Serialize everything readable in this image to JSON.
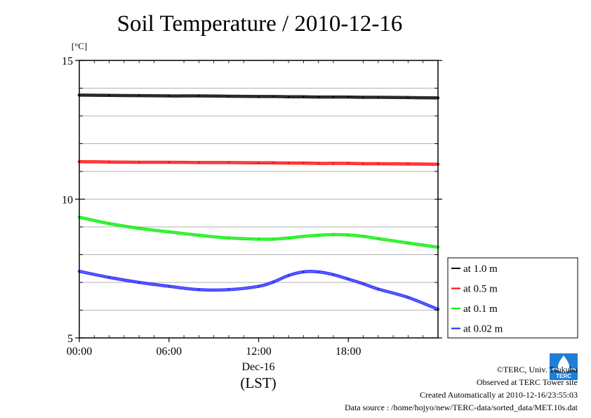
{
  "chart_data": {
    "type": "line",
    "title": "Soil Temperature / 2010-12-16",
    "ylabel": "[°C]",
    "xlabel": "(LST)",
    "x_sublabel": "Dec-16",
    "ylim": [
      5,
      15
    ],
    "xlim": [
      0,
      24
    ],
    "y_ticks": [
      5,
      10,
      15
    ],
    "y_minor_step": 1,
    "x_ticks": [
      {
        "x": 0,
        "label": "00:00"
      },
      {
        "x": 6,
        "label": "06:00"
      },
      {
        "x": 12,
        "label": "12:00"
      },
      {
        "x": 18,
        "label": "18:00"
      }
    ],
    "grid": true,
    "legend_position": "right",
    "x": [
      0,
      2,
      4,
      6,
      8,
      10,
      12,
      13,
      14,
      15,
      16,
      17,
      18,
      19,
      20,
      22,
      24
    ],
    "series": [
      {
        "name": "at 1.0 m",
        "color": "#000000",
        "values": [
          13.75,
          13.74,
          13.73,
          13.72,
          13.72,
          13.71,
          13.7,
          13.7,
          13.69,
          13.69,
          13.68,
          13.68,
          13.68,
          13.67,
          13.67,
          13.66,
          13.65
        ]
      },
      {
        "name": "at 0.5 m",
        "color": "#ff0000",
        "values": [
          11.35,
          11.34,
          11.33,
          11.33,
          11.32,
          11.32,
          11.31,
          11.31,
          11.3,
          11.3,
          11.29,
          11.29,
          11.29,
          11.28,
          11.28,
          11.27,
          11.26
        ]
      },
      {
        "name": "at 0.1 m",
        "color": "#00ee00",
        "values": [
          9.35,
          9.12,
          8.95,
          8.82,
          8.7,
          8.6,
          8.56,
          8.56,
          8.6,
          8.66,
          8.7,
          8.72,
          8.71,
          8.66,
          8.58,
          8.42,
          8.27
        ]
      },
      {
        "name": "at 0.02 m",
        "color": "#2222ff",
        "values": [
          7.4,
          7.18,
          7.0,
          6.86,
          6.74,
          6.74,
          6.86,
          7.02,
          7.25,
          7.38,
          7.38,
          7.28,
          7.12,
          6.95,
          6.76,
          6.46,
          6.03
        ]
      }
    ]
  },
  "footer": {
    "copyright": "©TERC, Univ. Tsukuba",
    "observed": "Observed at TERC Tower site",
    "created": "Created Automatically at 2010-12-16/23:55:03",
    "source": "Data source : /home/hojyo/new/TERC-data/sorted_data/MET.10s.dat"
  },
  "logo": {
    "text": "TERC",
    "color": "#1f7fd6"
  }
}
